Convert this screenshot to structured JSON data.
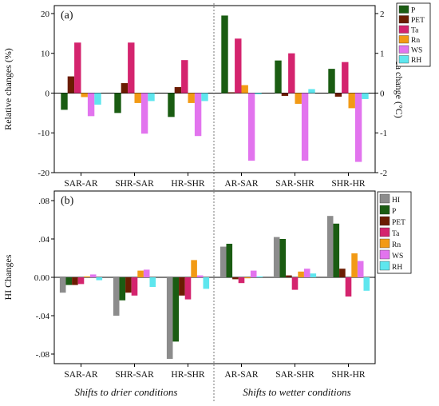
{
  "colors": {
    "HI": "#8c8c8c",
    "P": "#1a5c12",
    "PET": "#6b1c02",
    "Ta": "#d4246e",
    "Rn": "#f29a14",
    "WS": "#e274ee",
    "RH": "#5ee6ee"
  },
  "footer": {
    "left": "Shifts to drier conditions",
    "right": "Shifts to wetter conditions"
  },
  "chart_data": [
    {
      "type": "bar",
      "panel_label": "(a)",
      "categories": [
        "SAR-AR",
        "SHR-SAR",
        "HR-SHR",
        "AR-SAR",
        "SAR-SHR",
        "SHR-HR"
      ],
      "ylabel": "Relative changes (%)",
      "ylim": [
        -20,
        22
      ],
      "yticks": [
        -20,
        -10,
        0,
        10,
        20
      ],
      "y2label": "Ta change (°C)",
      "y2lim": [
        -2,
        2.2
      ],
      "y2ticks": [
        -2,
        -1,
        0,
        1,
        2
      ],
      "y2_series": "Ta",
      "legend_position": "top-right (outside)",
      "series": [
        {
          "name": "P",
          "values": [
            -4.2,
            -5.0,
            -6.0,
            19.5,
            8.2,
            6.1
          ]
        },
        {
          "name": "PET",
          "values": [
            4.2,
            2.5,
            1.5,
            0.2,
            -0.7,
            -0.9
          ]
        },
        {
          "name": "Ta",
          "values": [
            1.27,
            1.27,
            0.83,
            1.37,
            1.0,
            0.78
          ]
        },
        {
          "name": "Rn",
          "values": [
            -1.0,
            -2.5,
            -2.5,
            2.0,
            -2.7,
            -3.8
          ]
        },
        {
          "name": "WS",
          "values": [
            -5.8,
            -10.2,
            -10.8,
            -17.0,
            -17.0,
            -17.3
          ]
        },
        {
          "name": "RH",
          "values": [
            -2.9,
            -2.0,
            -2.0,
            -0.3,
            1.0,
            -1.5
          ]
        }
      ]
    },
    {
      "type": "bar",
      "panel_label": "(b)",
      "categories": [
        "SAR-AR",
        "SHR-SAR",
        "HR-SHR",
        "AR-SAR",
        "SAR-SHR",
        "SHR-HR"
      ],
      "ylabel": "HI Changes",
      "ylim": [
        -0.09,
        0.09
      ],
      "yticks": [
        -0.08,
        -0.04,
        0.0,
        0.04,
        0.08
      ],
      "legend_position": "top-right (outside)",
      "series": [
        {
          "name": "HI",
          "values": [
            -0.016,
            -0.04,
            -0.085,
            0.032,
            0.042,
            0.064
          ]
        },
        {
          "name": "P",
          "values": [
            -0.008,
            -0.024,
            -0.067,
            0.035,
            0.04,
            0.056
          ]
        },
        {
          "name": "PET",
          "values": [
            -0.008,
            -0.016,
            -0.019,
            -0.002,
            0.002,
            0.009
          ]
        },
        {
          "name": "Ta",
          "values": [
            -0.007,
            -0.019,
            -0.023,
            -0.006,
            -0.013,
            -0.02
          ]
        },
        {
          "name": "Rn",
          "values": [
            0.001,
            0.007,
            0.018,
            -0.001,
            0.006,
            0.025
          ]
        },
        {
          "name": "WS",
          "values": [
            0.003,
            0.008,
            0.002,
            0.007,
            0.009,
            0.017
          ]
        },
        {
          "name": "RH",
          "values": [
            -0.003,
            -0.01,
            -0.012,
            0.001,
            0.004,
            -0.014
          ]
        }
      ]
    }
  ]
}
